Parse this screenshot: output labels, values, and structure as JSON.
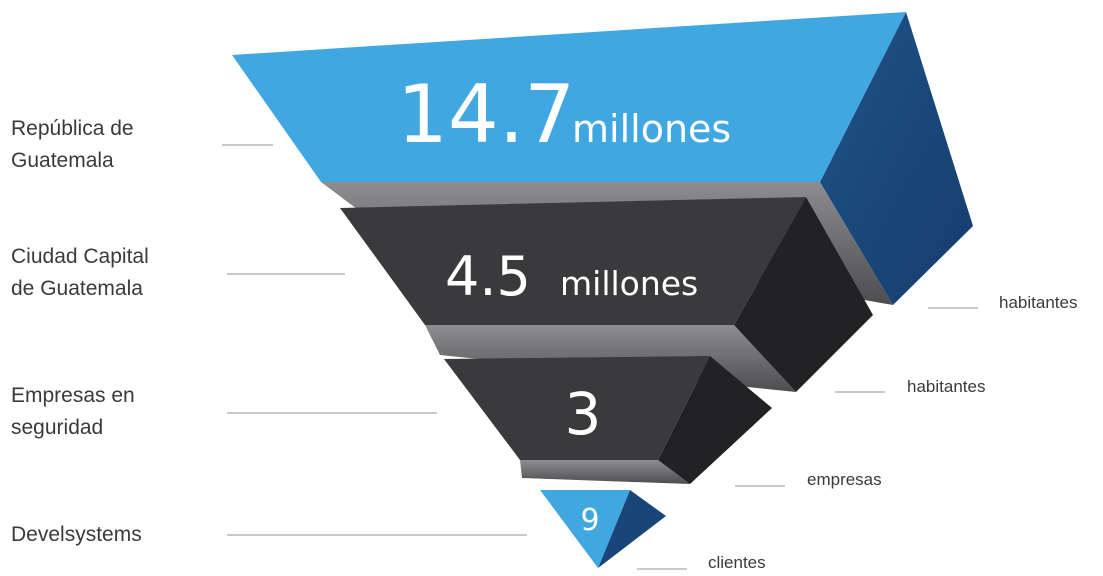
{
  "levels": [
    {
      "label_line1": "República de",
      "label_line2": "Guatemala",
      "value": "14.7",
      "suffix": "millones",
      "unit": "habitantes"
    },
    {
      "label_line1": "Ciudad Capital",
      "label_line2": "de Guatemala",
      "value": "4.5",
      "suffix": "millones",
      "unit": "habitantes"
    },
    {
      "label_line1": "Empresas en",
      "label_line2": "seguridad",
      "value": "3",
      "suffix": "",
      "unit": "empresas"
    },
    {
      "label_line1": "Develsystems",
      "label_line2": "",
      "value": "9",
      "suffix": "",
      "unit": "clientes"
    }
  ],
  "colors": {
    "blue_front": "#41a7e1",
    "blue_side": "#18457a",
    "dark_front": "#3a3a3c",
    "dark_side": "#222224",
    "gray_bottom": "#6e6e70",
    "connector_line": "#c8c8c8",
    "label_text": "#3a3a3a"
  }
}
